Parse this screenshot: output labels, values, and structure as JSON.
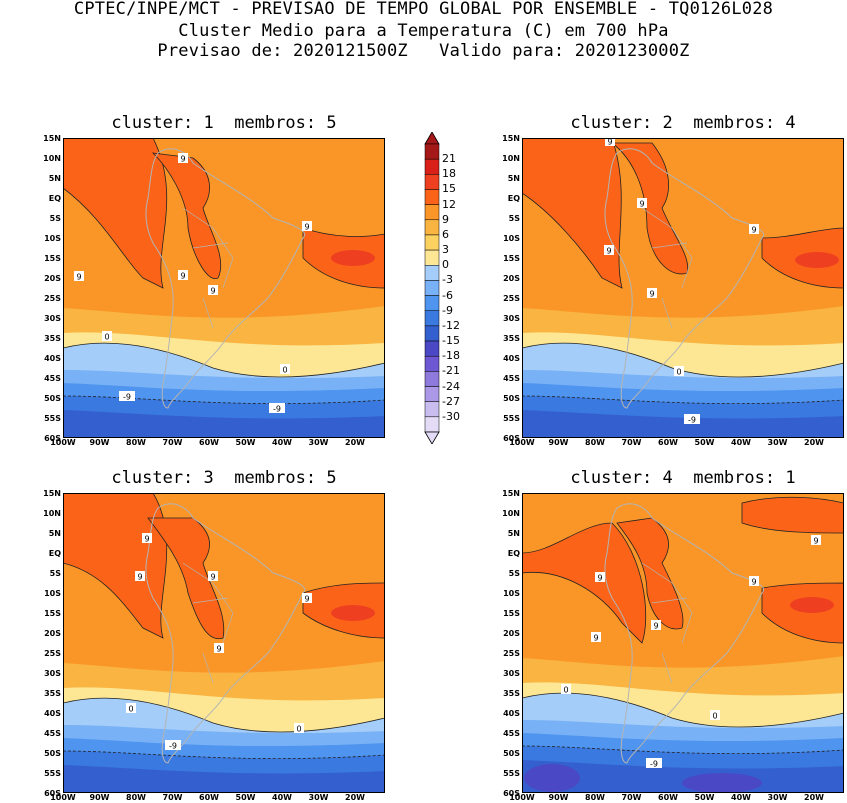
{
  "header": {
    "line1": "CPTEC/INPE/MCT - PREVISAO DE TEMPO GLOBAL POR ENSEMBLE - TQ0126L028",
    "line2": "Cluster Medio para a Temperatura (C) em 700 hPa",
    "line3": "Previsao de: 2020121500Z   Valido para: 2020123000Z"
  },
  "panels": [
    {
      "title": "cluster: 1  membros: 5"
    },
    {
      "title": "cluster: 2  membros: 4"
    },
    {
      "title": "cluster: 3  membros: 5"
    },
    {
      "title": "cluster: 4  membros: 1"
    }
  ],
  "axes": {
    "lat_labels": [
      "15N",
      "10N",
      "5N",
      "EQ",
      "5S",
      "10S",
      "15S",
      "20S",
      "25S",
      "30S",
      "35S",
      "40S",
      "45S",
      "50S",
      "55S",
      "60S"
    ],
    "lon_labels": [
      "100W",
      "90W",
      "80W",
      "70W",
      "60W",
      "50W",
      "40W",
      "30W",
      "20W"
    ]
  },
  "contour_labels": [
    "9",
    "0",
    "-9"
  ],
  "colorbar": {
    "values": [
      "21",
      "18",
      "15",
      "12",
      "9",
      "6",
      "3",
      "0",
      "-3",
      "-6",
      "-9",
      "-12",
      "-15",
      "-18",
      "-21",
      "-24",
      "-27",
      "-30"
    ],
    "colors": [
      "#a51818",
      "#d82018",
      "#ee4020",
      "#fb6418",
      "#fa9628",
      "#f9b441",
      "#fbd160",
      "#fde794",
      "#a4cdf9",
      "#78b1f5",
      "#4f94ee",
      "#3a79e0",
      "#3460cf",
      "#4a48c4",
      "#6e57d2",
      "#8e79dc",
      "#ab98e6",
      "#c9bdf0",
      "#e4dcf6"
    ]
  },
  "map_style": {
    "band_colors": {
      "warm9": "#fb6418",
      "warm6": "#fa9628",
      "warm3": "#f9b441",
      "warm0": "#fbd160",
      "cold0": "#fde794",
      "m3": "#a4cdf9",
      "m6": "#78b1f5",
      "m9": "#4f94ee",
      "m12": "#3a79e0",
      "m15": "#3460cf",
      "m18": "#4a48c4",
      "m21": "#6e57d2"
    },
    "coastline_color": "#b4b4b4"
  }
}
